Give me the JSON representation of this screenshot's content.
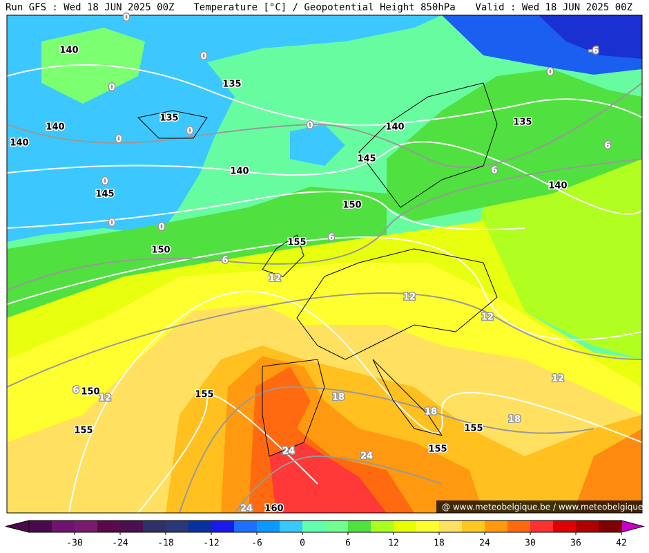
{
  "header": {
    "run": "Run GFS : Wed 18 JUN 2025 00Z",
    "title": "Temperature [°C] / Geopotential Height 850hPa",
    "valid": "Valid : Wed 18 JUN 2025 00Z"
  },
  "map": {
    "height_labels": [
      140,
      135,
      135,
      140,
      140,
      140,
      135,
      140,
      145,
      145,
      150,
      140,
      155,
      150,
      150,
      155,
      155,
      155,
      155,
      160
    ],
    "temperature_labels": [
      0,
      0,
      0,
      0,
      0,
      0,
      0,
      0,
      0,
      0,
      -6,
      6,
      6,
      6,
      6,
      6,
      12,
      12,
      12,
      12,
      12,
      18,
      18,
      18,
      24,
      24,
      24
    ],
    "credit": "@ www.meteobelgique.be / www.meteobelgique.be"
  },
  "colorbar": {
    "lim": [
      -36,
      42
    ],
    "ticks": [
      -30,
      -24,
      -18,
      -12,
      -6,
      0,
      6,
      12,
      18,
      24,
      30,
      36,
      42
    ],
    "colors": [
      "#4b0a4b",
      "#6e1470",
      "#7a1a6e",
      "#5a0a4a",
      "#4a1050",
      "#303068",
      "#283878",
      "#0a2fa0",
      "#1a1aee",
      "#1f6fff",
      "#0a9aff",
      "#37c8ff",
      "#60ffb0",
      "#70ff90",
      "#50e040",
      "#a8ff20",
      "#e8ff00",
      "#ffff30",
      "#ffe060",
      "#ffc820",
      "#ff9a10",
      "#ff6a10",
      "#ff3030",
      "#e00000",
      "#b00000",
      "#800000"
    ]
  }
}
